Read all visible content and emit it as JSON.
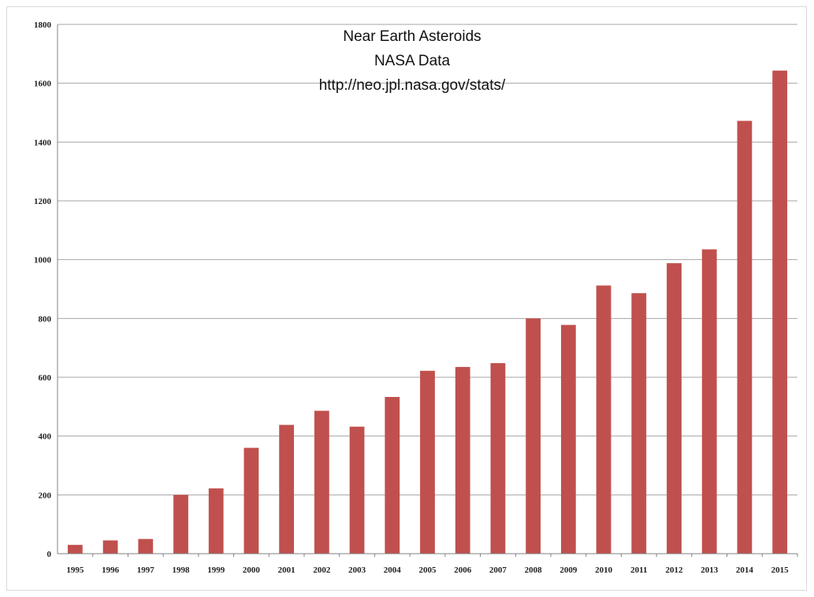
{
  "chart_data": {
    "type": "bar",
    "title_lines": [
      "Near Earth Asteroids",
      "NASA Data",
      "http://neo.jpl.nasa.gov/stats/"
    ],
    "xlabel": "",
    "ylabel": "",
    "categories": [
      "1995",
      "1996",
      "1997",
      "1998",
      "1999",
      "2000",
      "2001",
      "2002",
      "2003",
      "2004",
      "2005",
      "2006",
      "2007",
      "2008",
      "2009",
      "2010",
      "2011",
      "2012",
      "2013",
      "2014",
      "2015"
    ],
    "values": [
      30,
      45,
      50,
      200,
      222,
      360,
      438,
      486,
      432,
      533,
      622,
      635,
      648,
      800,
      778,
      912,
      886,
      988,
      1035,
      1472,
      1643
    ],
    "ylim": [
      0,
      1800
    ],
    "yticks": [
      "0",
      "200",
      "400",
      "600",
      "800",
      "1000",
      "1200",
      "1400",
      "1600",
      "1800"
    ],
    "grid": true,
    "legend": "none",
    "bar_color": "#c0504d",
    "grid_color": "#a6a6a6",
    "axis_color": "#808080"
  }
}
